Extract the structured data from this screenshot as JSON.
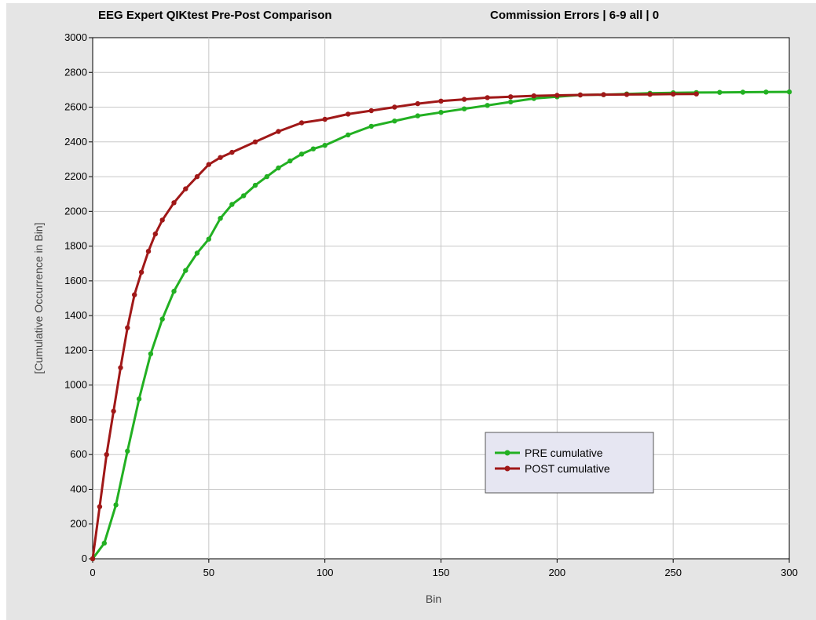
{
  "chart_data": {
    "type": "line",
    "title": "EEG Expert QIKtest Pre-Post Comparison",
    "subtitle": "Commission Errors |  6-9 all  | 0",
    "xlabel": "Bin",
    "ylabel": "[Cumulative Occurrence in Bin]",
    "xlim": [
      0,
      300
    ],
    "ylim": [
      0,
      3000
    ],
    "xticks": [
      "0",
      "50",
      "100",
      "150",
      "200",
      "250",
      "300"
    ],
    "yticks": [
      "0",
      "200",
      "400",
      "600",
      "800",
      "1000",
      "1200",
      "1400",
      "1600",
      "1800",
      "2000",
      "2200",
      "2400",
      "2600",
      "2800",
      "3000"
    ],
    "grid": true,
    "legend_position": "lower-right",
    "series": [
      {
        "name": "PRE cumulative",
        "color": "#22b022",
        "x": [
          0,
          5,
          10,
          15,
          20,
          25,
          30,
          35,
          40,
          45,
          50,
          55,
          60,
          65,
          70,
          75,
          80,
          85,
          90,
          95,
          100,
          110,
          120,
          130,
          140,
          150,
          160,
          170,
          180,
          190,
          200,
          210,
          220,
          230,
          240,
          250,
          260,
          270,
          280,
          290,
          300
        ],
        "y": [
          0,
          90,
          310,
          620,
          920,
          1180,
          1380,
          1540,
          1660,
          1760,
          1840,
          1960,
          2040,
          2090,
          2150,
          2200,
          2250,
          2290,
          2330,
          2360,
          2380,
          2440,
          2490,
          2520,
          2550,
          2570,
          2590,
          2610,
          2630,
          2650,
          2660,
          2670,
          2672,
          2676,
          2680,
          2683,
          2684,
          2685,
          2686,
          2687,
          2688
        ]
      },
      {
        "name": "POST cumulative",
        "color": "#a01818",
        "x": [
          0,
          3,
          6,
          9,
          12,
          15,
          18,
          21,
          24,
          27,
          30,
          35,
          40,
          45,
          50,
          55,
          60,
          70,
          80,
          90,
          100,
          110,
          120,
          130,
          140,
          150,
          160,
          170,
          180,
          190,
          200,
          210,
          220,
          230,
          240,
          250,
          260
        ],
        "y": [
          0,
          300,
          600,
          850,
          1100,
          1330,
          1520,
          1650,
          1770,
          1870,
          1950,
          2050,
          2130,
          2200,
          2270,
          2310,
          2340,
          2400,
          2460,
          2510,
          2530,
          2560,
          2580,
          2600,
          2620,
          2635,
          2645,
          2655,
          2660,
          2665,
          2668,
          2670,
          2672,
          2673,
          2674,
          2675,
          2676
        ]
      }
    ]
  }
}
